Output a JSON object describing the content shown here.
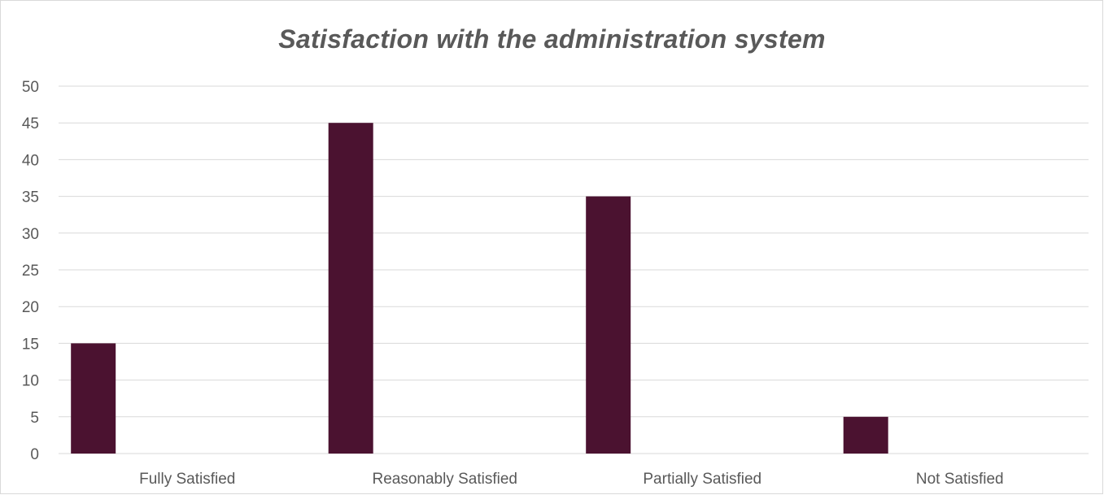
{
  "chart_data": {
    "type": "bar",
    "title": "Satisfaction with the administration system",
    "xlabel": "",
    "ylabel": "",
    "categories": [
      "Fully Satisfied",
      "Reasonably Satisfied",
      "Partially Satisfied",
      "Not Satisfied"
    ],
    "values": [
      15,
      45,
      35,
      5
    ],
    "ylim": [
      0,
      50
    ],
    "yticks": [
      0,
      5,
      10,
      15,
      20,
      25,
      30,
      35,
      40,
      45,
      50
    ],
    "grid": true,
    "legend": "none",
    "bar_color": "#4b1230"
  }
}
